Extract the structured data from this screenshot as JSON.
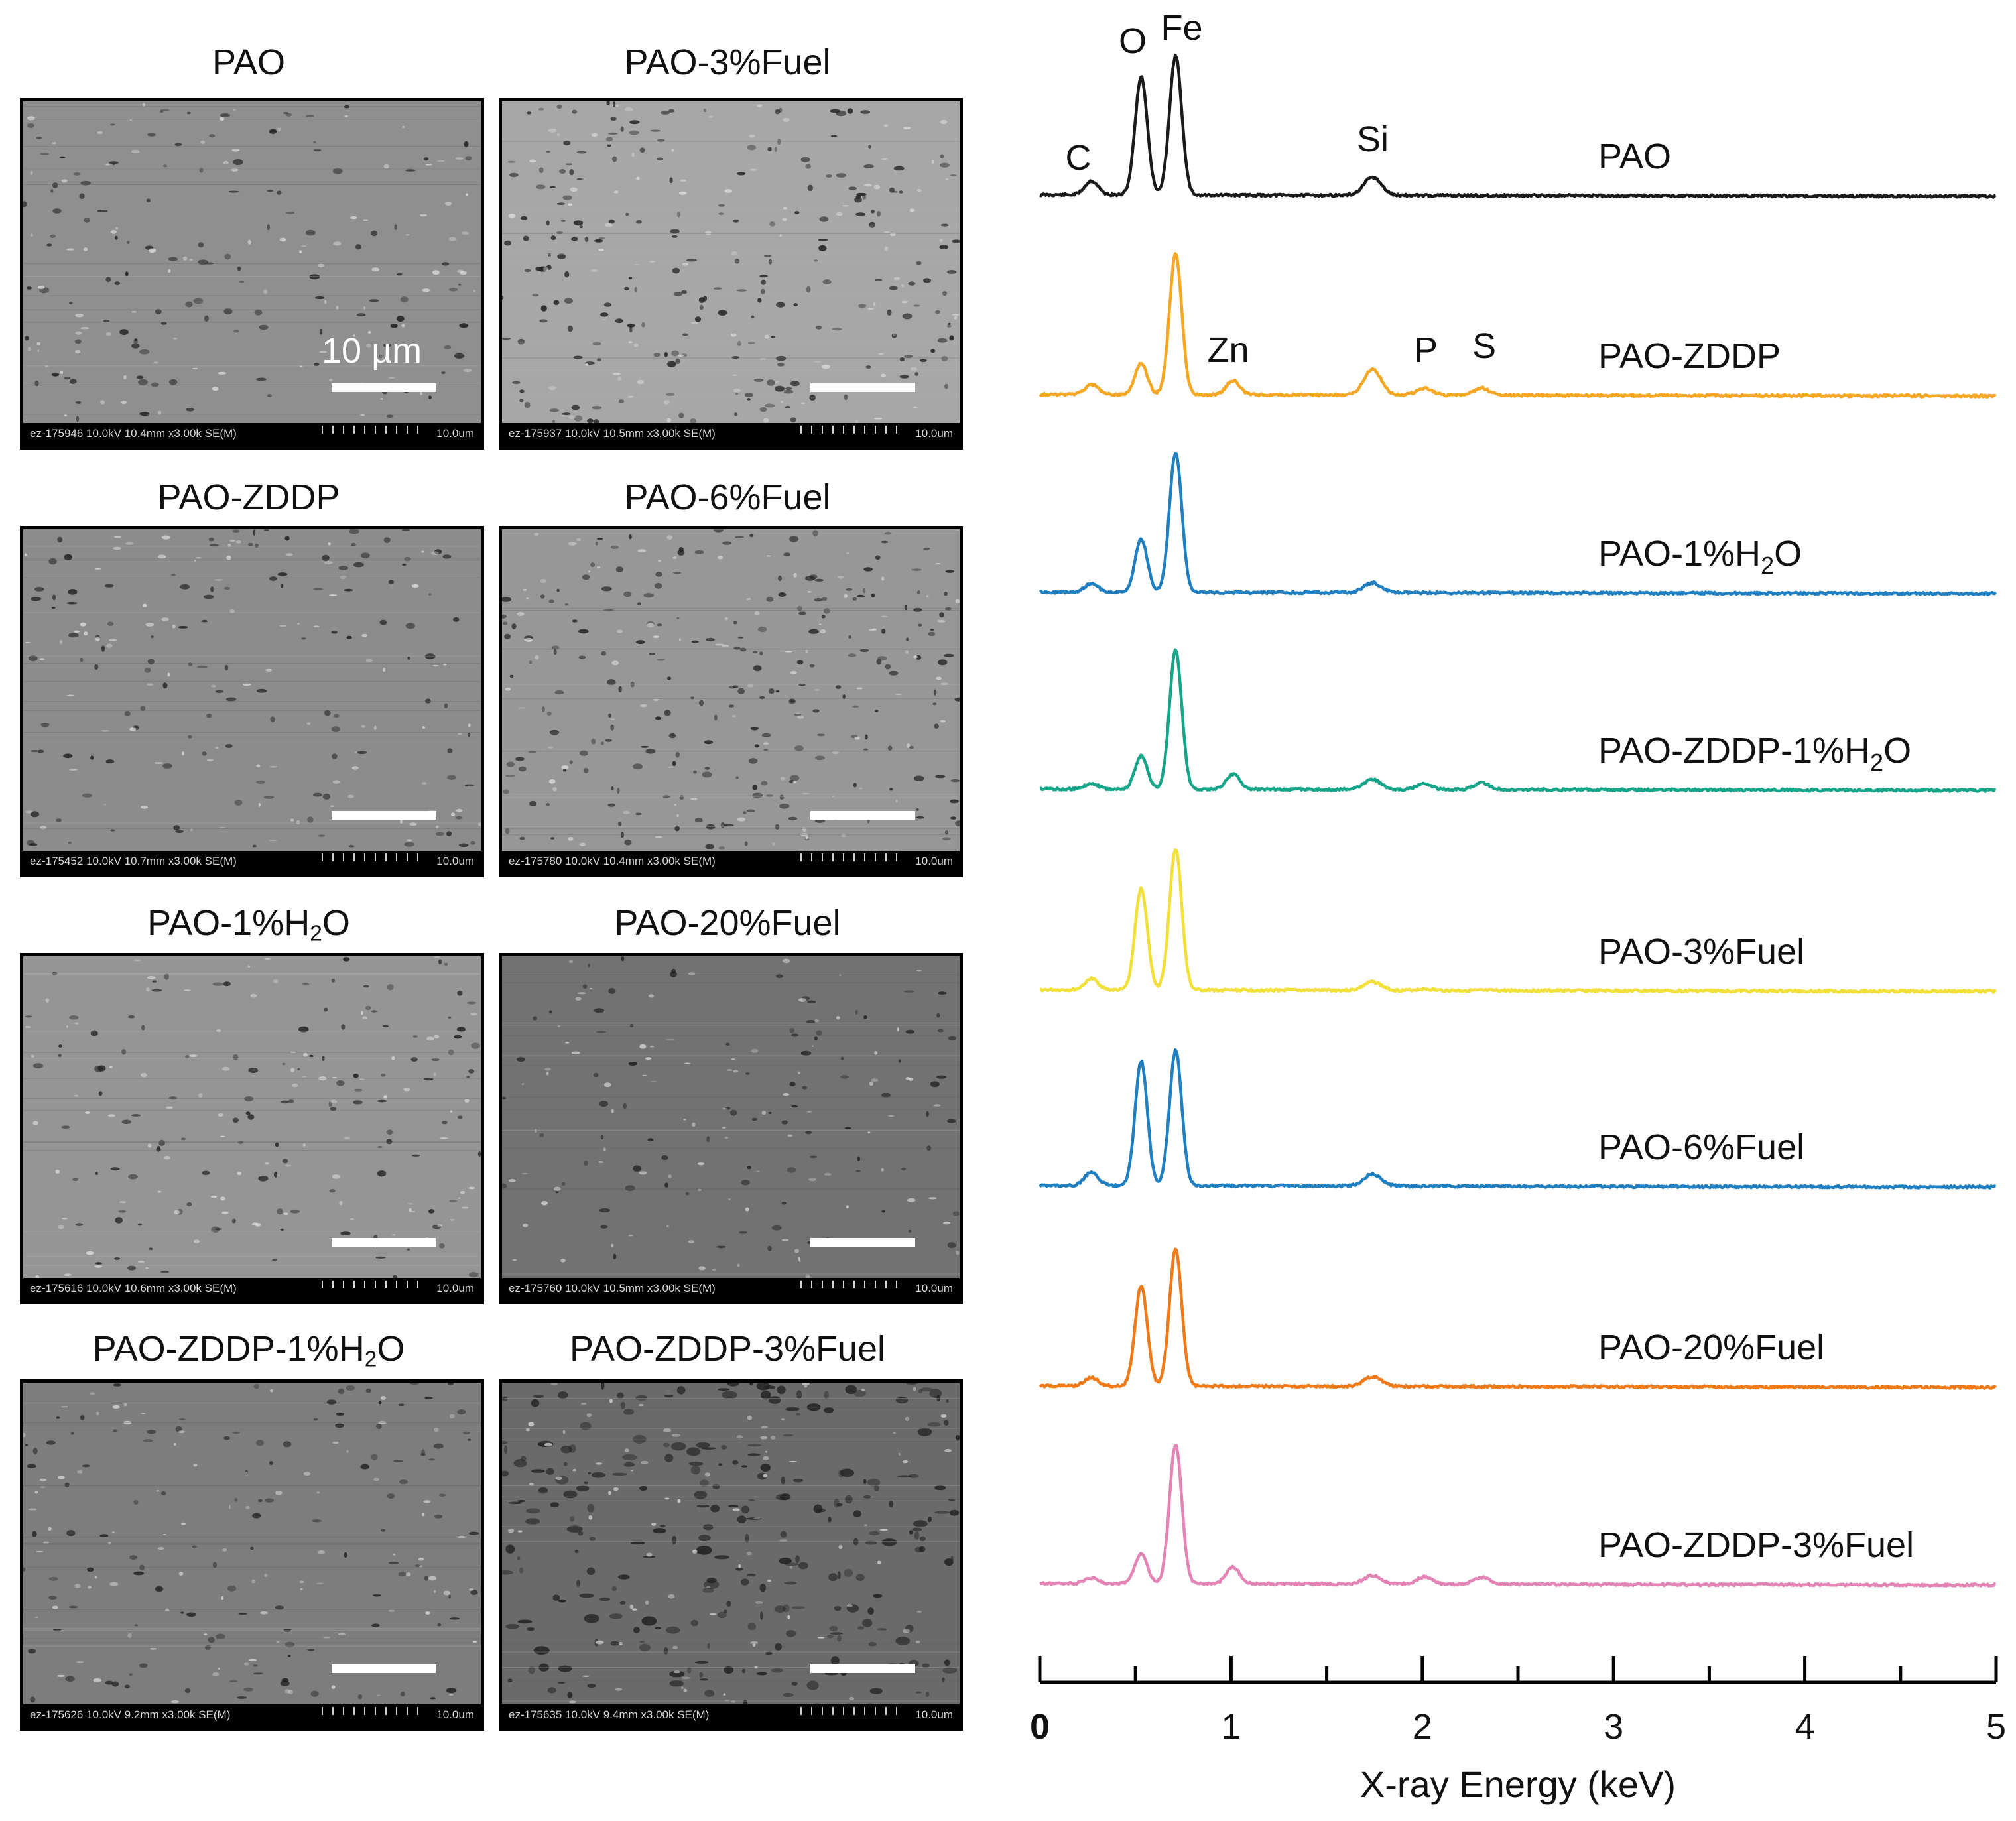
{
  "sem_panels": [
    {
      "label": "PAO",
      "label_sub": "",
      "label_tail": "",
      "info": "ez-175946 10.0kV 10.4mm x3.00k SE(M)",
      "unit": "10.0um",
      "scale_text": "10 µm",
      "tone": "#8f8f8f"
    },
    {
      "label": "PAO-3%Fuel",
      "label_sub": "",
      "label_tail": "",
      "info": "ez-175937 10.0kV 10.5mm x3.00k SE(M)",
      "unit": "10.0um",
      "scale_text": "",
      "tone": "#a7a7a7"
    },
    {
      "label": "PAO-ZDDP",
      "label_sub": "",
      "label_tail": "",
      "info": "ez-175452 10.0kV 10.7mm x3.00k SE(M)",
      "unit": "10.0um",
      "scale_text": "",
      "tone": "#8c8c8c"
    },
    {
      "label": "PAO-6%Fuel",
      "label_sub": "",
      "label_tail": "",
      "info": "ez-175780 10.0kV 10.4mm x3.00k SE(M)",
      "unit": "10.0um",
      "scale_text": "",
      "tone": "#979797"
    },
    {
      "label": "PAO-1%H",
      "label_sub": "2",
      "label_tail": "O",
      "info": "ez-175616 10.0kV 10.6mm x3.00k SE(M)",
      "unit": "10.0um",
      "scale_text": "",
      "tone": "#959595"
    },
    {
      "label": "PAO-20%Fuel",
      "label_sub": "",
      "label_tail": "",
      "info": "ez-175760 10.0kV 10.5mm x3.00k SE(M)",
      "unit": "10.0um",
      "scale_text": "",
      "tone": "#727272"
    },
    {
      "label": "PAO-ZDDP-1%H",
      "label_sub": "2",
      "label_tail": "O",
      "info": "ez-175626 10.0kV 9.2mm x3.00k SE(M)",
      "unit": "10.0um",
      "scale_text": "",
      "tone": "#7d7d7d"
    },
    {
      "label": "PAO-ZDDP-3%Fuel",
      "label_sub": "",
      "label_tail": "",
      "info": "ez-175635 10.0kV 9.4mm x3.00k SE(M)",
      "unit": "10.0um",
      "scale_text": "",
      "tone": "#6a6a6a"
    }
  ],
  "chart_data": {
    "type": "line",
    "xlabel": "X-ray Energy (keV)",
    "xlim": [
      0,
      5
    ],
    "x_ticks": [
      "0",
      "1",
      "2",
      "3",
      "4",
      "5"
    ],
    "y_axis_shown": false,
    "grid": false,
    "element_labels": [
      {
        "text": "C",
        "x": 0.19
      },
      {
        "text": "O",
        "x": 0.48
      },
      {
        "text": "Fe",
        "x": 0.75
      },
      {
        "text": "Zn",
        "x": 0.98
      },
      {
        "text": "Si",
        "x": 1.76
      },
      {
        "text": "P",
        "x": 2.01
      },
      {
        "text": "S",
        "x": 2.32
      }
    ],
    "series": [
      {
        "name": "PAO",
        "name_sub": "",
        "name_tail": "",
        "color": "#1a1a1a",
        "peaks": {
          "C": 0.1,
          "O": 0.85,
          "Fe": 1.0,
          "Zn": 0,
          "Si": 0.13,
          "P": 0,
          "S": 0
        }
      },
      {
        "name": "PAO-ZDDP",
        "name_sub": "",
        "name_tail": "",
        "color": "#f5a623",
        "peaks": {
          "C": 0.07,
          "O": 0.22,
          "Fe": 1.0,
          "Zn": 0.1,
          "Si": 0.18,
          "P": 0.05,
          "S": 0.05
        }
      },
      {
        "name": "PAO-1%H",
        "name_sub": "2",
        "name_tail": "O",
        "color": "#1f7fc0",
        "peaks": {
          "C": 0.06,
          "O": 0.38,
          "Fe": 1.0,
          "Zn": 0,
          "Si": 0.07,
          "P": 0,
          "S": 0
        }
      },
      {
        "name": "PAO-ZDDP-1%H",
        "name_sub": "2",
        "name_tail": "O",
        "color": "#17a589",
        "peaks": {
          "C": 0.04,
          "O": 0.24,
          "Fe": 1.0,
          "Zn": 0.11,
          "Si": 0.07,
          "P": 0.04,
          "S": 0.05
        }
      },
      {
        "name": "PAO-3%Fuel",
        "name_sub": "",
        "name_tail": "",
        "color": "#f2e03a",
        "peaks": {
          "C": 0.08,
          "O": 0.72,
          "Fe": 1.0,
          "Zn": 0,
          "Si": 0.06,
          "P": 0.01,
          "S": 0
        }
      },
      {
        "name": "PAO-6%Fuel",
        "name_sub": "",
        "name_tail": "",
        "color": "#1f7fc0",
        "peaks": {
          "C": 0.1,
          "O": 0.92,
          "Fe": 1.0,
          "Zn": 0,
          "Si": 0.09,
          "P": 0,
          "S": 0
        }
      },
      {
        "name": "PAO-20%Fuel",
        "name_sub": "",
        "name_tail": "",
        "color": "#ee7a1a",
        "peaks": {
          "C": 0.06,
          "O": 0.73,
          "Fe": 1.0,
          "Zn": 0,
          "Si": 0.07,
          "P": 0,
          "S": 0
        }
      },
      {
        "name": "PAO-ZDDP-3%Fuel",
        "name_sub": "",
        "name_tail": "",
        "color": "#e384b5",
        "peaks": {
          "C": 0.04,
          "O": 0.22,
          "Fe": 1.0,
          "Zn": 0.12,
          "Si": 0.06,
          "P": 0.05,
          "S": 0.05
        }
      }
    ]
  }
}
